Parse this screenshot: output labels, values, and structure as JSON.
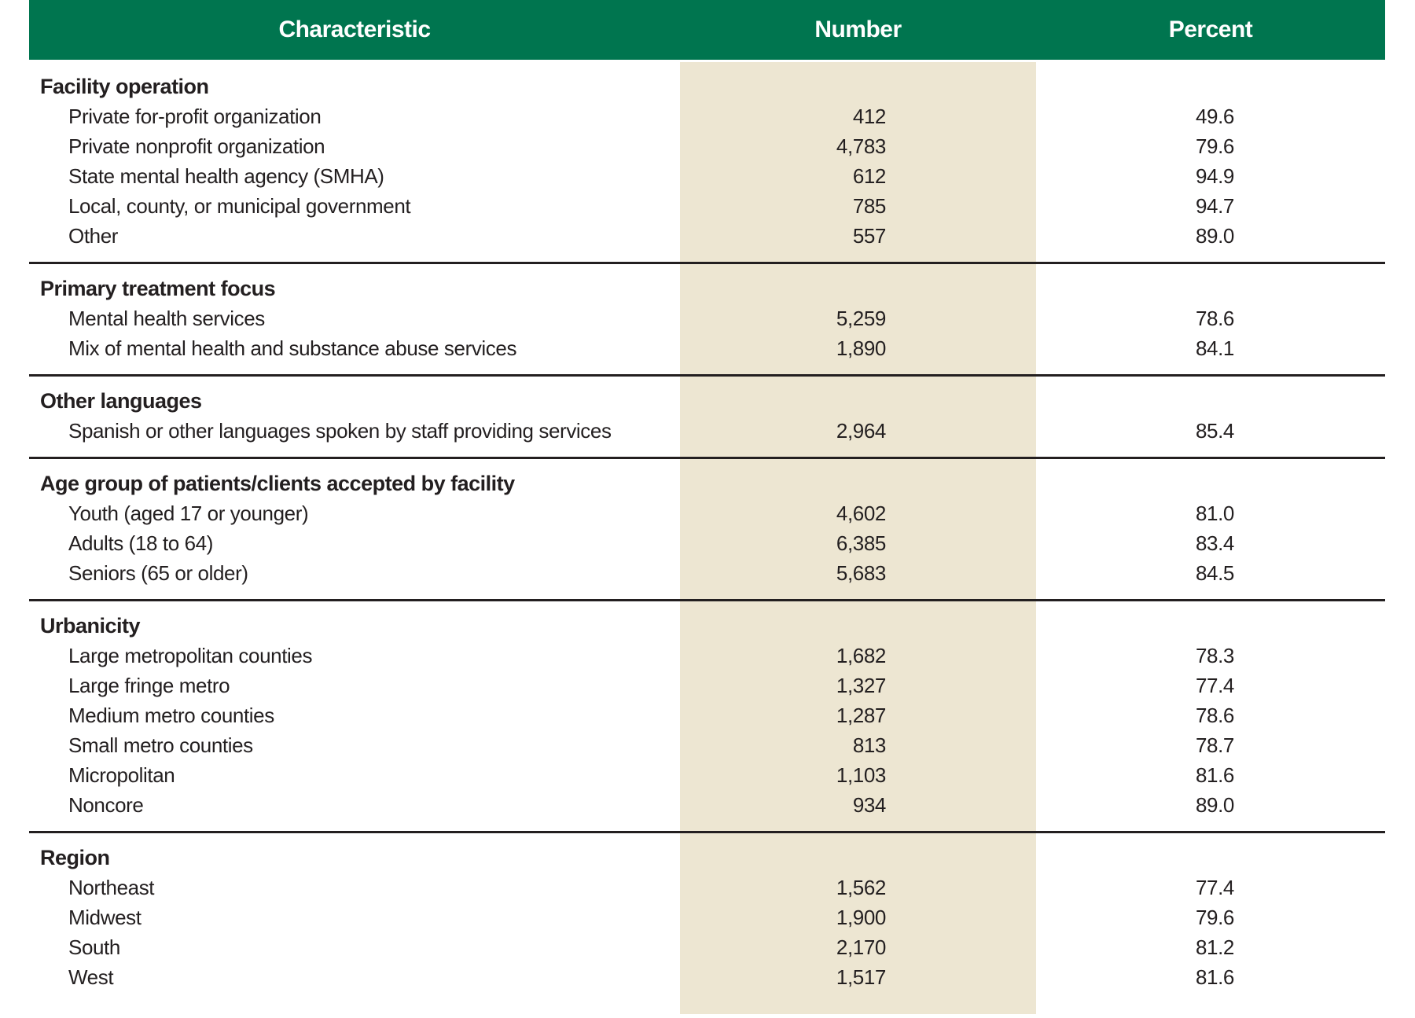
{
  "table": {
    "columns": [
      "Characteristic",
      "Number",
      "Percent"
    ],
    "sections": [
      {
        "header": "Facility operation",
        "rows": [
          {
            "label": "Private for-profit organization",
            "number": "412",
            "percent": "49.6"
          },
          {
            "label": "Private nonprofit organization",
            "number": "4,783",
            "percent": "79.6"
          },
          {
            "label": "State mental health agency (SMHA)",
            "number": "612",
            "percent": "94.9"
          },
          {
            "label": "Local, county, or municipal government",
            "number": "785",
            "percent": "94.7"
          },
          {
            "label": "Other",
            "number": "557",
            "percent": "89.0"
          }
        ]
      },
      {
        "header": "Primary treatment focus",
        "rows": [
          {
            "label": "Mental health services",
            "number": "5,259",
            "percent": "78.6"
          },
          {
            "label": "Mix of mental health and substance abuse services",
            "number": "1,890",
            "percent": "84.1"
          }
        ]
      },
      {
        "header": "Other languages",
        "rows": [
          {
            "label": "Spanish or other languages spoken by staff providing services",
            "number": "2,964",
            "percent": "85.4"
          }
        ]
      },
      {
        "header": "Age group of patients/clients accepted by facility",
        "rows": [
          {
            "label": "Youth (aged 17 or younger)",
            "number": "4,602",
            "percent": "81.0"
          },
          {
            "label": "Adults (18 to 64)",
            "number": "6,385",
            "percent": "83.4"
          },
          {
            "label": "Seniors (65 or older)",
            "number": "5,683",
            "percent": "84.5"
          }
        ]
      },
      {
        "header": "Urbanicity",
        "rows": [
          {
            "label": "Large metropolitan counties",
            "number": "1,682",
            "percent": "78.3"
          },
          {
            "label": "Large fringe metro",
            "number": "1,327",
            "percent": "77.4"
          },
          {
            "label": "Medium metro counties",
            "number": "1,287",
            "percent": "78.6"
          },
          {
            "label": "Small metro counties",
            "number": "813",
            "percent": "78.7"
          },
          {
            "label": "Micropolitan",
            "number": "1,103",
            "percent": "81.6"
          },
          {
            "label": "Noncore",
            "number": "934",
            "percent": "89.0"
          }
        ]
      },
      {
        "header": "Region",
        "rows": [
          {
            "label": "Northeast",
            "number": "1,562",
            "percent": "77.4"
          },
          {
            "label": "Midwest",
            "number": "1,900",
            "percent": "79.6"
          },
          {
            "label": "South",
            "number": "2,170",
            "percent": "81.2"
          },
          {
            "label": "West",
            "number": "1,517",
            "percent": "81.6"
          }
        ]
      }
    ]
  },
  "colors": {
    "header_green": "#00754F",
    "number_column_beige": "#EDE6D2",
    "rule_color": "#231F20",
    "header_text": "#FFFFFF",
    "body_text": "#231F20"
  }
}
